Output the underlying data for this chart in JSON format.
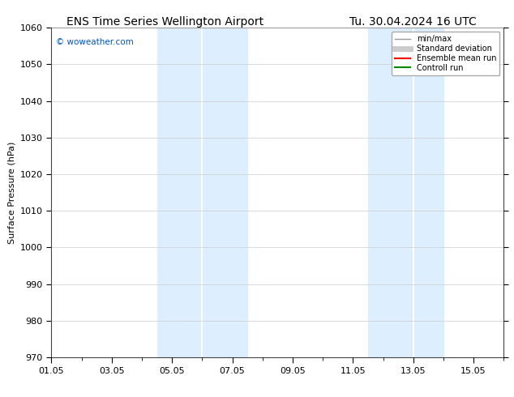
{
  "title_left": "ENS Time Series Wellington Airport",
  "title_right": "Tu. 30.04.2024 16 UTC",
  "ylabel": "Surface Pressure (hPa)",
  "ylim": [
    970,
    1060
  ],
  "yticks": [
    970,
    980,
    990,
    1000,
    1010,
    1020,
    1030,
    1040,
    1050,
    1060
  ],
  "xlabel_ticks": [
    "01.05",
    "03.05",
    "05.05",
    "07.05",
    "09.05",
    "11.05",
    "13.05",
    "15.05"
  ],
  "x_tick_positions": [
    0,
    2,
    4,
    6,
    8,
    10,
    12,
    14
  ],
  "xlim": [
    0,
    15
  ],
  "watermark": "© woweather.com",
  "legend_entries": [
    "min/max",
    "Standard deviation",
    "Ensemble mean run",
    "Controll run"
  ],
  "legend_colors": [
    "#999999",
    "#cccccc",
    "#ff0000",
    "#008800"
  ],
  "shading_bands": [
    {
      "x_start": 3.5,
      "x_end": 5.5,
      "color": "#ddeeff"
    },
    {
      "x_start": 5.5,
      "x_end": 6.5,
      "color": "#ddeeff"
    },
    {
      "x_start": 10.5,
      "x_end": 11.5,
      "color": "#ddeeff"
    },
    {
      "x_start": 11.5,
      "x_end": 12.5,
      "color": "#ddeeff"
    }
  ],
  "background_color": "#ffffff",
  "grid_color": "#cccccc",
  "title_fontsize": 10,
  "tick_fontsize": 8,
  "ylabel_fontsize": 8
}
